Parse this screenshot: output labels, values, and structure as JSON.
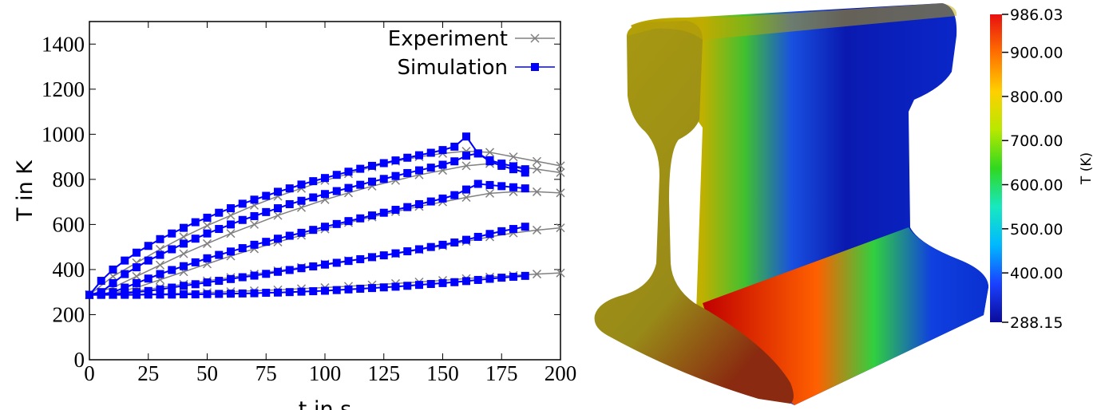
{
  "chart_data": [
    {
      "type": "line",
      "xlabel": "t in s",
      "ylabel": "T in K",
      "xlim": [
        0,
        200
      ],
      "ylim": [
        0,
        1500
      ],
      "xticks": [
        0,
        25,
        50,
        75,
        100,
        125,
        150,
        175,
        200
      ],
      "yticks": [
        0,
        200,
        400,
        600,
        800,
        1000,
        1200,
        1400
      ],
      "legend": "top-right",
      "series": [
        {
          "name": "Experiment",
          "color": "#808080",
          "marker": "x",
          "x": [
            0,
            10,
            20,
            30,
            40,
            50,
            60,
            70,
            80,
            90,
            100,
            110,
            120,
            130,
            140,
            150,
            160,
            170,
            180,
            190,
            200
          ],
          "curves": [
            [
              288,
              370,
              430,
              490,
              545,
              595,
              640,
              685,
              725,
              760,
              795,
              825,
              855,
              880,
              900,
              915,
              925,
              920,
              900,
              880,
              860
            ],
            [
              288,
              320,
              370,
              420,
              470,
              515,
              560,
              600,
              640,
              675,
              710,
              740,
              770,
              795,
              820,
              840,
              860,
              870,
              860,
              845,
              830
            ],
            [
              288,
              295,
              320,
              355,
              390,
              425,
              460,
              492,
              522,
              552,
              580,
              608,
              633,
              657,
              680,
              700,
              720,
              738,
              745,
              745,
              740
            ],
            [
              288,
              295,
              305,
              320,
              335,
              350,
              365,
              380,
              395,
              410,
              425,
              440,
              455,
              470,
              488,
              505,
              525,
              545,
              562,
              575,
              585
            ],
            [
              288,
              288,
              290,
              292,
              295,
              298,
              302,
              306,
              310,
              315,
              320,
              326,
              332,
              338,
              345,
              352,
              360,
              367,
              374,
              380,
              385
            ]
          ]
        },
        {
          "name": "Simulation",
          "color": "#0000ff",
          "marker": "square",
          "x": [
            0,
            5,
            10,
            15,
            20,
            25,
            30,
            35,
            40,
            45,
            50,
            55,
            60,
            65,
            70,
            75,
            80,
            85,
            90,
            95,
            100,
            105,
            110,
            115,
            120,
            125,
            130,
            135,
            140,
            145,
            150,
            155,
            160,
            165,
            170,
            175,
            180,
            185
          ],
          "curves": [
            [
              288,
              350,
              400,
              440,
              475,
              505,
              535,
              560,
              585,
              610,
              630,
              652,
              672,
              692,
              710,
              727,
              745,
              760,
              777,
              792,
              806,
              820,
              834,
              847,
              860,
              872,
              884,
              896,
              907,
              918,
              930,
              945,
              990,
              915,
              885,
              870,
              858,
              845
            ],
            [
              288,
              300,
              340,
              380,
              410,
              440,
              465,
              490,
              515,
              537,
              560,
              580,
              600,
              620,
              637,
              655,
              672,
              690,
              705,
              720,
              735,
              748,
              762,
              776,
              790,
              802,
              815,
              828,
              840,
              852,
              865,
              880,
              905,
              915,
              880,
              860,
              845,
              830
            ],
            [
              288,
              290,
              300,
              320,
              340,
              360,
              380,
              398,
              415,
              432,
              450,
              465,
              480,
              495,
              510,
              523,
              537,
              550,
              563,
              576,
              590,
              602,
              615,
              627,
              640,
              652,
              665,
              677,
              690,
              702,
              715,
              730,
              755,
              780,
              775,
              770,
              765,
              760
            ],
            [
              288,
              288,
              290,
              295,
              300,
              305,
              312,
              320,
              328,
              335,
              343,
              350,
              358,
              366,
              373,
              381,
              390,
              398,
              406,
              414,
              422,
              430,
              438,
              446,
              455,
              463,
              472,
              481,
              490,
              500,
              510,
              520,
              532,
              545,
              558,
              570,
              580,
              590
            ],
            [
              288,
              288,
              288,
              288,
              288,
              289,
              289,
              289,
              290,
              290,
              291,
              292,
              293,
              294,
              295,
              297,
              298,
              300,
              302,
              304,
              306,
              309,
              312,
              315,
              318,
              321,
              324,
              328,
              332,
              336,
              340,
              344,
              349,
              354,
              359,
              364,
              368,
              372
            ]
          ]
        }
      ]
    },
    {
      "type": "colorbar",
      "label": "T (K)",
      "clim": [
        288.15,
        986.03
      ],
      "colors": [
        "#0b0b9a",
        "#1a40ff",
        "#00b8ff",
        "#18e8c0",
        "#30d820",
        "#b8e800",
        "#ffd000",
        "#ff7000",
        "#e81010"
      ],
      "ticks": [
        986.03,
        {
          "value": 900,
          "label": "900.00"
        },
        {
          "value": 800,
          "label": "800.00"
        },
        {
          "value": 700,
          "label": "700.00"
        },
        {
          "value": 600,
          "label": "600.00"
        },
        {
          "value": 500,
          "label": "500.00"
        },
        {
          "value": 400,
          "label": "400.00"
        },
        288.15
      ]
    }
  ]
}
